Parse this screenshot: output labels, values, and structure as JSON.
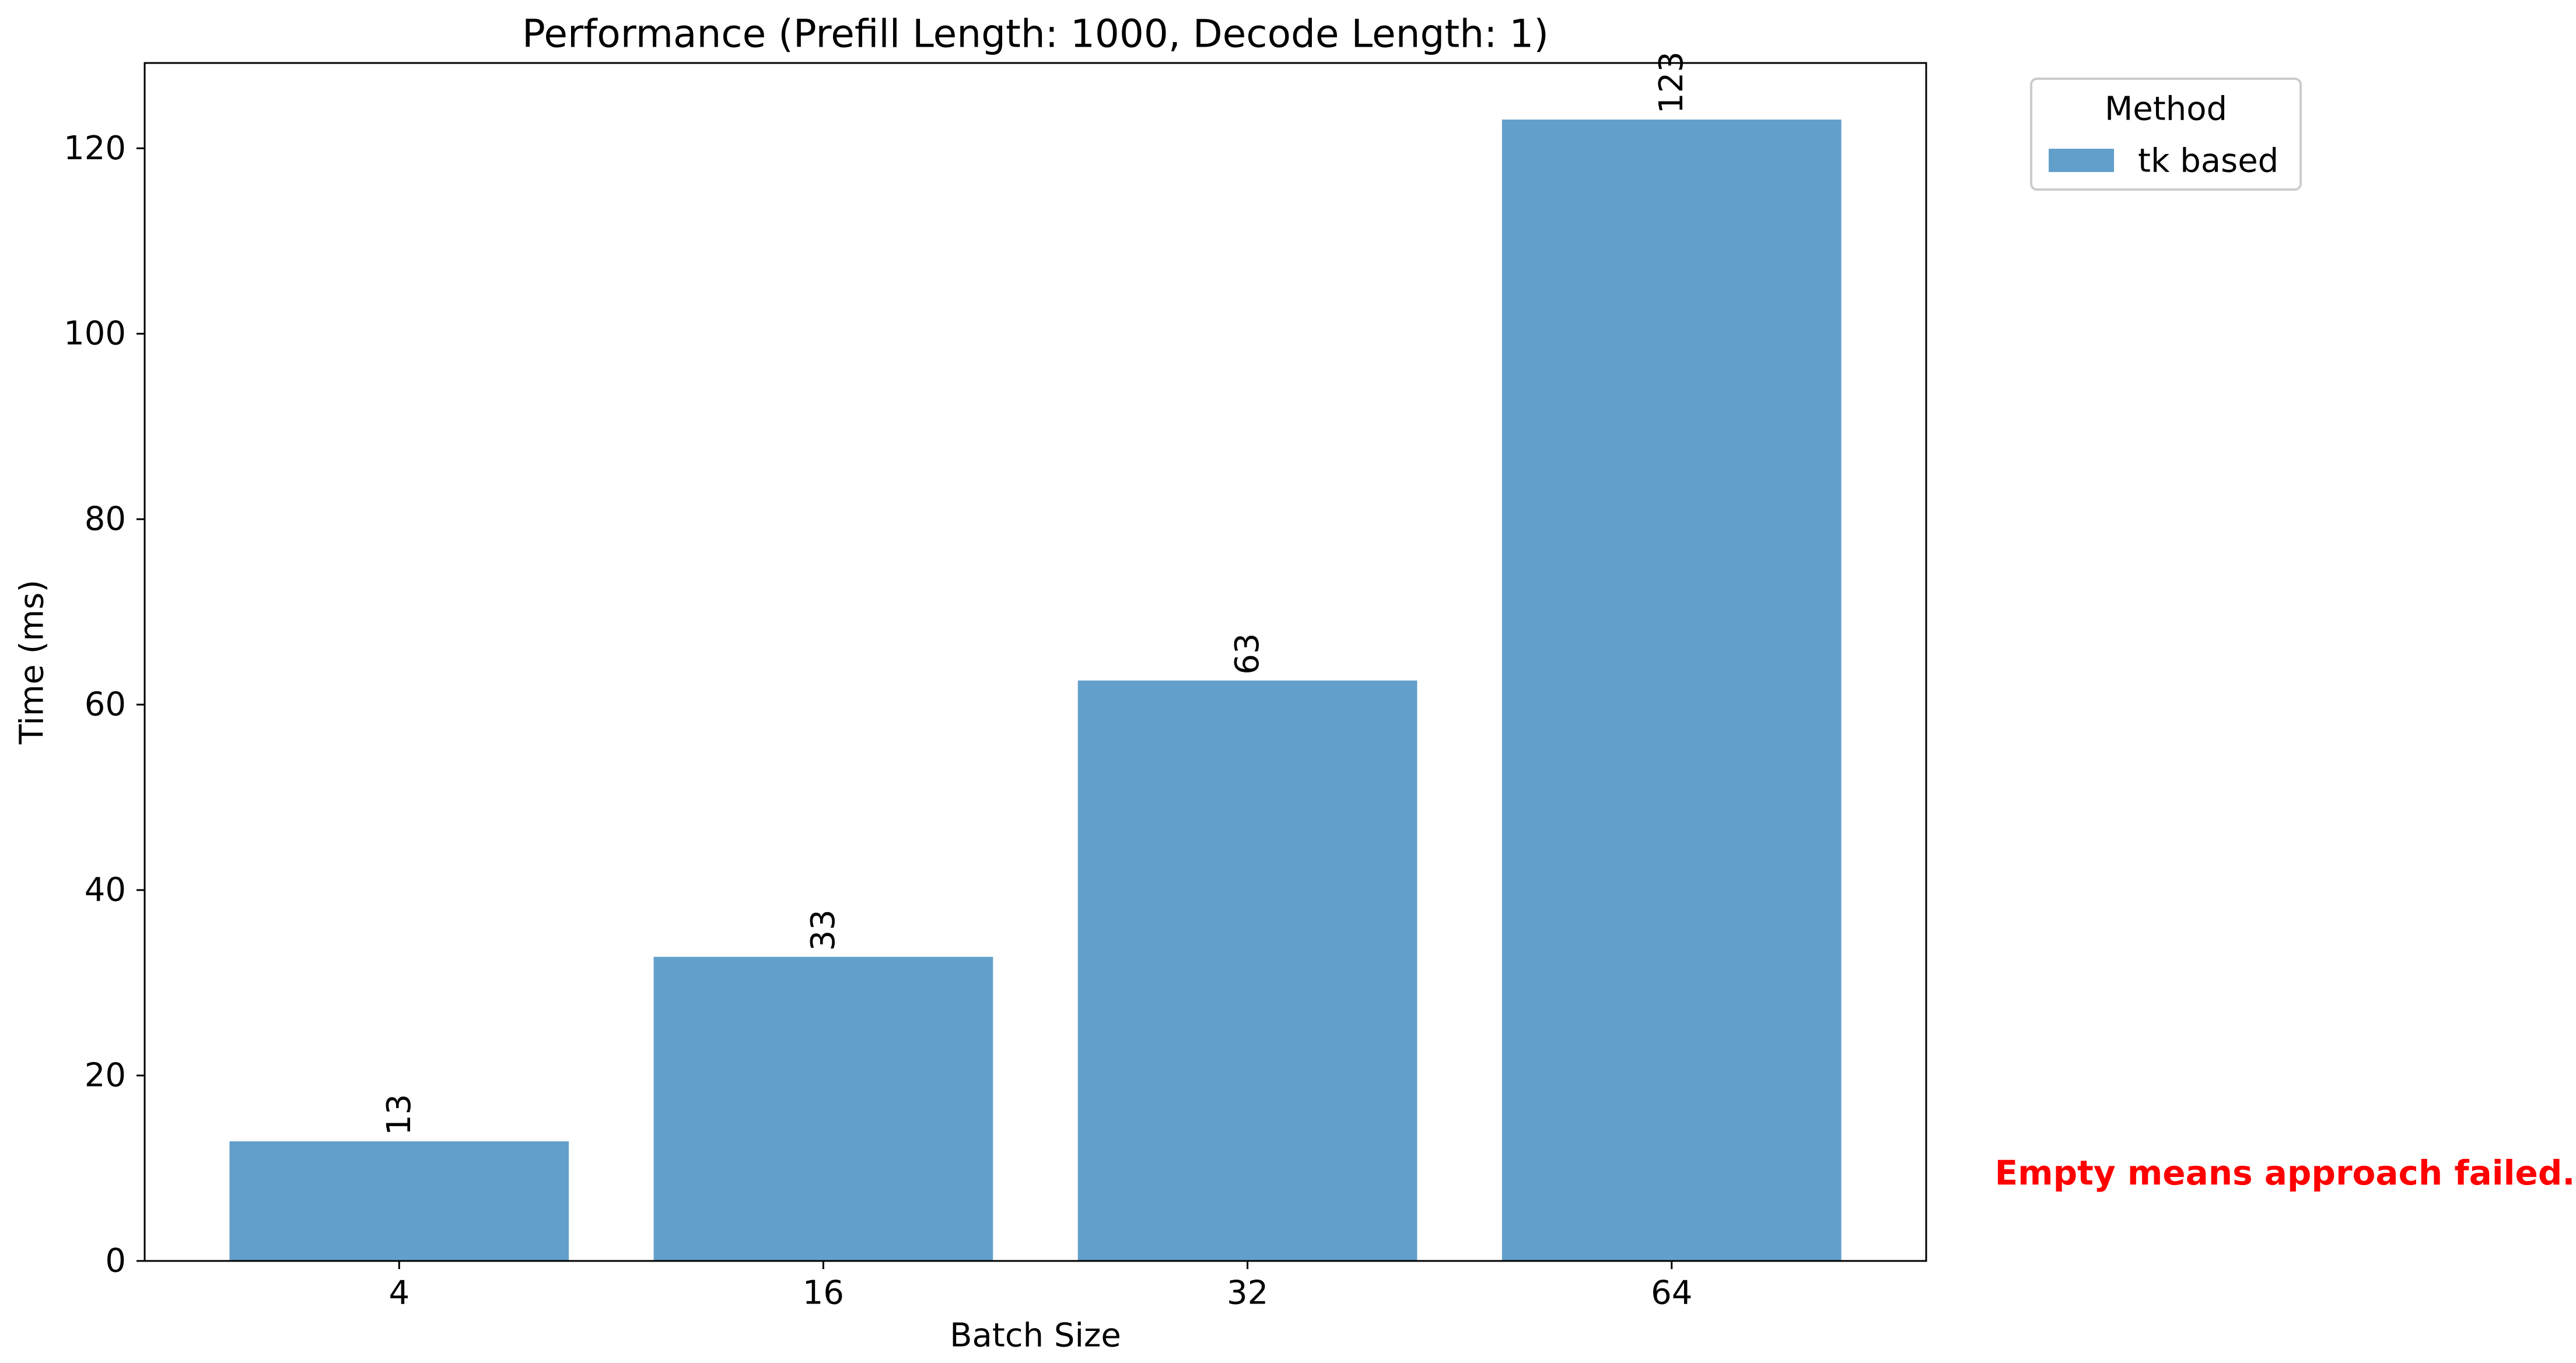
{
  "chart_data": {
    "type": "bar",
    "title": "Performance (Prefill Length: 1000, Decode Length: 1)",
    "xlabel": "Batch Size",
    "ylabel": "Time (ms)",
    "categories": [
      "4",
      "16",
      "32",
      "64"
    ],
    "series": [
      {
        "name": "tk based",
        "values": [
          12.9,
          32.8,
          62.6,
          123.1
        ],
        "labels": [
          "13",
          "33",
          "63",
          "123"
        ],
        "color": "#62a0cb"
      }
    ],
    "ylim": [
      0,
      129.2
    ],
    "yticks": [
      0,
      20,
      40,
      60,
      80,
      100,
      120
    ],
    "legend": {
      "title": "Method",
      "placement": "outside-top-right"
    },
    "grid": false,
    "annotation": {
      "text": "Empty means approach failed.",
      "color": "#ff0000"
    }
  }
}
